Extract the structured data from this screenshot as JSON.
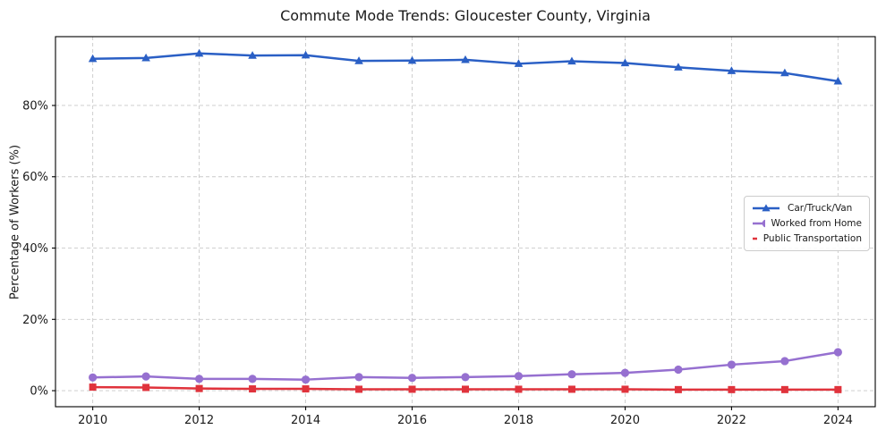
{
  "chart_data": {
    "type": "line",
    "title": "Commute Mode Trends: Gloucester County, Virginia",
    "xlabel": "",
    "ylabel": "Percentage of Workers (%)",
    "x": [
      2010,
      2011,
      2012,
      2013,
      2014,
      2015,
      2016,
      2017,
      2018,
      2019,
      2020,
      2021,
      2022,
      2023,
      2024
    ],
    "series": [
      {
        "name": "Car/Truck/Van",
        "color": "#2a5fc5",
        "marker": "triangle",
        "values": [
          93.1,
          93.3,
          94.6,
          94.0,
          94.1,
          92.5,
          92.6,
          92.8,
          91.7,
          92.4,
          91.9,
          90.7,
          89.7,
          89.1,
          86.8
        ]
      },
      {
        "name": "Worked from Home",
        "color": "#9670d0",
        "marker": "circle",
        "values": [
          3.7,
          4.0,
          3.3,
          3.3,
          3.1,
          3.8,
          3.6,
          3.8,
          4.1,
          4.6,
          5.0,
          5.9,
          7.3,
          8.3,
          10.8
        ]
      },
      {
        "name": "Public Transportation",
        "color": "#e0333c",
        "marker": "square",
        "values": [
          1.0,
          0.9,
          0.6,
          0.5,
          0.5,
          0.4,
          0.4,
          0.4,
          0.4,
          0.4,
          0.4,
          0.3,
          0.3,
          0.3,
          0.3
        ]
      }
    ],
    "xticks": [
      2010,
      2012,
      2014,
      2016,
      2018,
      2020,
      2022,
      2024
    ],
    "yticks": [
      0,
      20,
      40,
      60,
      80
    ],
    "ytick_labels": [
      "0%",
      "20%",
      "40%",
      "60%",
      "80%"
    ],
    "xlim": [
      2009.3,
      2024.7
    ],
    "ylim": [
      -4.5,
      99.3
    ],
    "grid": true,
    "legend_position": "center-right"
  }
}
